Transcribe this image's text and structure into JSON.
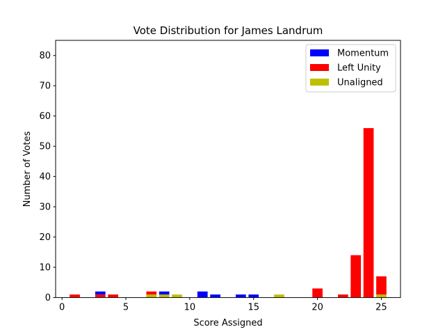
{
  "chart_data": {
    "type": "bar",
    "stacked": true,
    "title": "Vote Distribution for James Landrum",
    "xlabel": "Score Assigned",
    "ylabel": "Number of Votes",
    "xlim": [
      -0.5,
      26.5
    ],
    "ylim": [
      0,
      85
    ],
    "xticks": [
      0,
      5,
      10,
      15,
      20,
      25
    ],
    "yticks": [
      0,
      10,
      20,
      30,
      40,
      50,
      60,
      70,
      80
    ],
    "grid": false,
    "legend_position": "top-right",
    "x": [
      1,
      3,
      4,
      7,
      8,
      9,
      11,
      12,
      14,
      15,
      17,
      20,
      22,
      23,
      24,
      25
    ],
    "series": [
      {
        "name": "Unaligned",
        "color": "#bfbf00",
        "values": [
          0,
          0,
          0,
          1,
          1,
          1,
          0,
          0,
          0,
          0,
          1,
          0,
          0,
          0,
          0,
          1
        ]
      },
      {
        "name": "Left Unity",
        "color": "#ff0000",
        "values": [
          1,
          1,
          1,
          1,
          0,
          0,
          0,
          0,
          0,
          0,
          0,
          3,
          1,
          14,
          56,
          6
        ]
      },
      {
        "name": "Momentum",
        "color": "#0000ff",
        "values": [
          0,
          1,
          0,
          0,
          1,
          0,
          2,
          1,
          1,
          1,
          0,
          0,
          0,
          0,
          0,
          0
        ]
      }
    ],
    "legend_order": [
      "Momentum",
      "Left Unity",
      "Unaligned"
    ]
  }
}
